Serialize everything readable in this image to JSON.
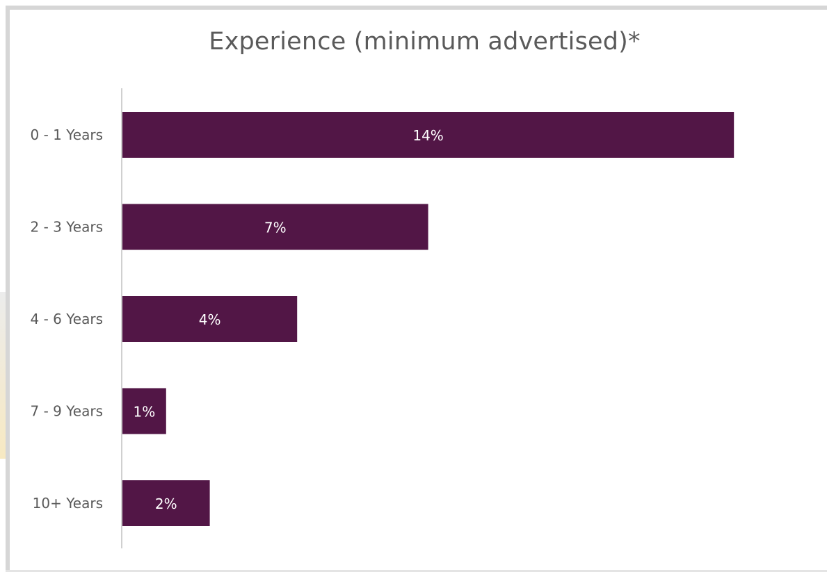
{
  "chart_data": {
    "type": "bar",
    "orientation": "horizontal",
    "title": "Experience (minimum advertised)*",
    "categories": [
      "0 - 1 Years",
      "2 - 3 Years",
      "4 - 6 Years",
      "7 - 9 Years",
      "10+ Years"
    ],
    "values": [
      14,
      7,
      4,
      1,
      2
    ],
    "data_labels": [
      "14%",
      "7%",
      "4%",
      "1%",
      "2%"
    ],
    "unit": "%",
    "xlim": [
      0,
      15
    ],
    "xlabel": "",
    "ylabel": "",
    "grid": false,
    "legend": "none",
    "colors": {
      "bar": "#521646",
      "axis": "#d0d0d0",
      "title": "#5a5a5a",
      "tick": "#595959",
      "data_label": "#ffffff"
    }
  }
}
